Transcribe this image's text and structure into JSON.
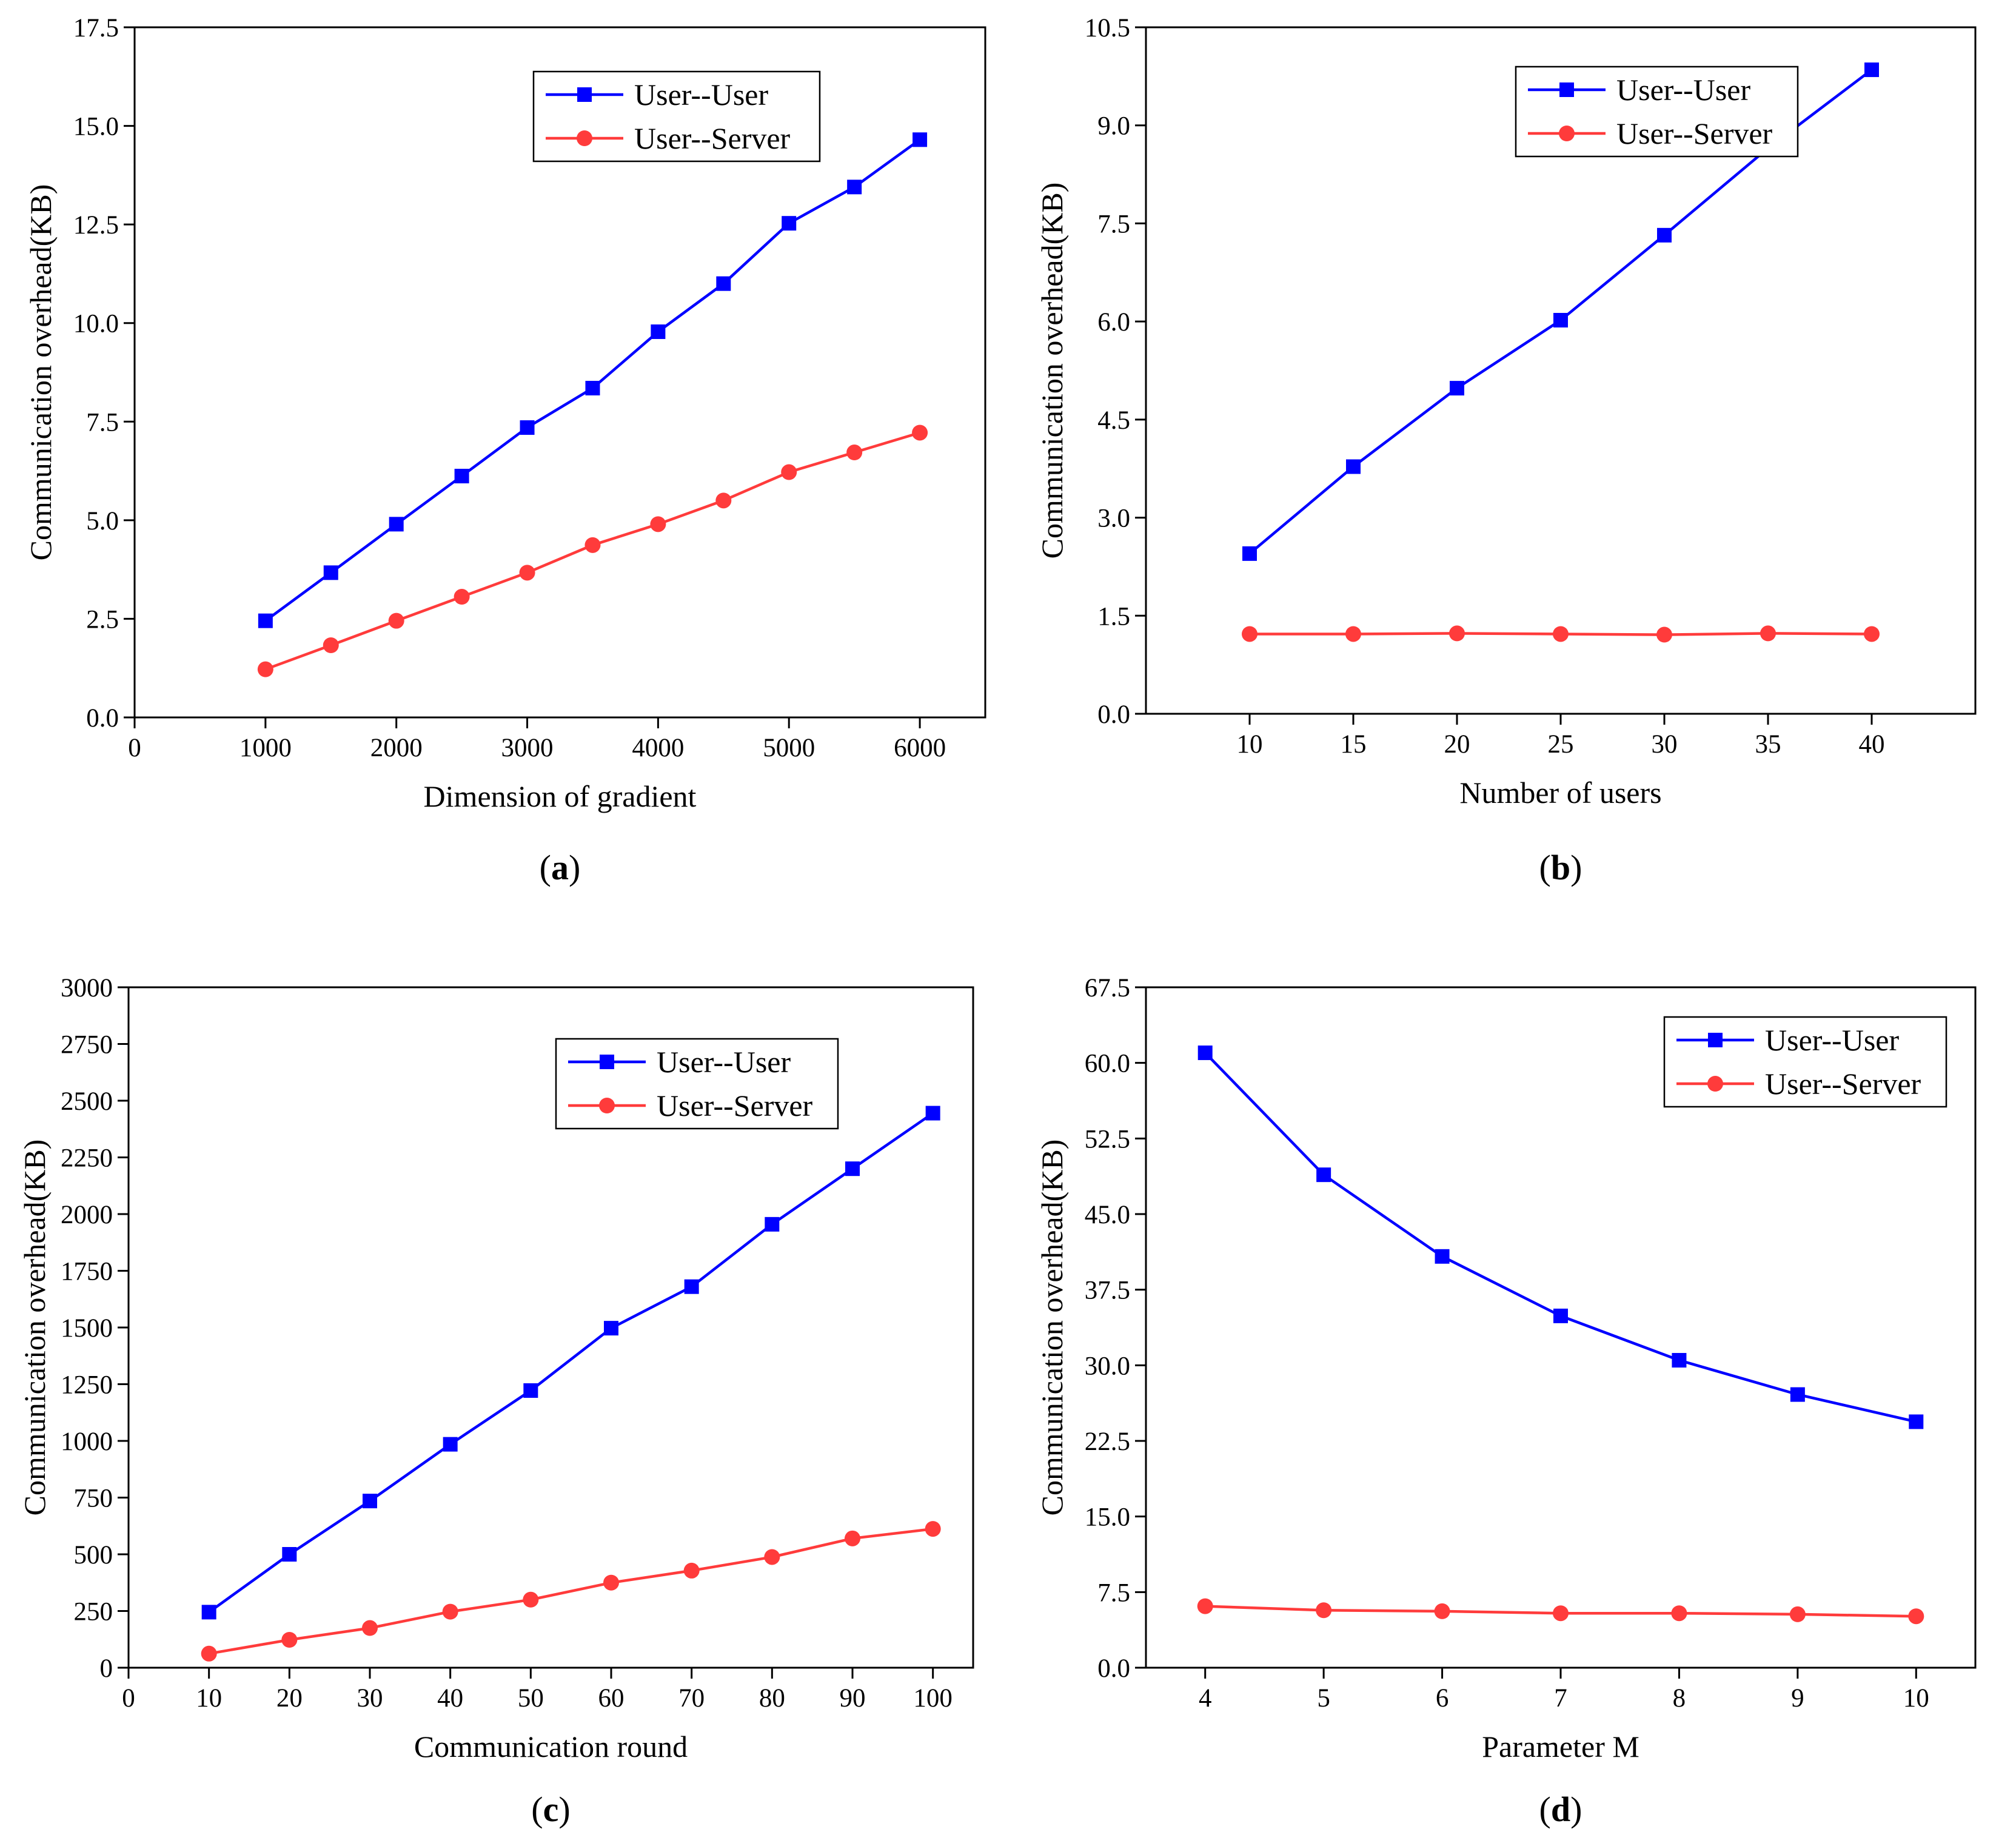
{
  "chart_data": [
    {
      "type": "line",
      "caption": "a",
      "xlabel": "Dimension of gradient",
      "ylabel": "Communication overhead(KB)",
      "xlim": [
        0,
        6500
      ],
      "ylim": [
        0,
        17.5
      ],
      "xticks": [
        "0",
        "1000",
        "2000",
        "3000",
        "4000",
        "5000",
        "6000"
      ],
      "xtick_values": [
        0,
        1000,
        2000,
        3000,
        4000,
        5000,
        6000
      ],
      "yticks": [
        "0.0",
        "2.5",
        "5.0",
        "7.5",
        "10.0",
        "12.5",
        "15.0",
        "17.5"
      ],
      "ytick_values": [
        0,
        2.5,
        5.0,
        7.5,
        10.0,
        12.5,
        15.0,
        17.5
      ],
      "legend": "top-right",
      "x": [
        1000,
        1500,
        2000,
        2500,
        3000,
        3500,
        4000,
        4500,
        5000,
        5500,
        6000
      ],
      "series": [
        {
          "name": "User--User",
          "color": "#0000ff",
          "marker": "square",
          "values": [
            2.45,
            3.67,
            4.9,
            6.12,
            7.35,
            8.35,
            9.78,
            11.0,
            12.53,
            13.45,
            14.65
          ]
        },
        {
          "name": "User--Server",
          "color": "#ff3b3b",
          "marker": "circle",
          "values": [
            1.22,
            1.83,
            2.45,
            3.06,
            3.67,
            4.37,
            4.9,
            5.5,
            6.22,
            6.72,
            7.22
          ]
        }
      ]
    },
    {
      "type": "line",
      "caption": "b",
      "xlabel": "Number of users",
      "ylabel": "Communication overhead(KB)",
      "xlim": [
        5,
        45
      ],
      "ylim": [
        0,
        10.5
      ],
      "xticks": [
        "10",
        "15",
        "20",
        "25",
        "30",
        "35",
        "40"
      ],
      "xtick_values": [
        10,
        15,
        20,
        25,
        30,
        35,
        40
      ],
      "yticks": [
        "0.0",
        "1.5",
        "3.0",
        "4.5",
        "6.0",
        "7.5",
        "9.0",
        "10.5"
      ],
      "ytick_values": [
        0,
        1.5,
        3.0,
        4.5,
        6.0,
        7.5,
        9.0,
        10.5
      ],
      "legend": "top-right",
      "x": [
        10,
        15,
        20,
        25,
        30,
        35,
        40
      ],
      "series": [
        {
          "name": "User--User",
          "color": "#0000ff",
          "marker": "square",
          "values": [
            2.45,
            3.78,
            4.98,
            6.02,
            7.32,
            8.65,
            9.85
          ]
        },
        {
          "name": "User--Server",
          "color": "#ff3b3b",
          "marker": "circle",
          "values": [
            1.22,
            1.22,
            1.23,
            1.22,
            1.21,
            1.23,
            1.22
          ]
        }
      ]
    },
    {
      "type": "line",
      "caption": "c",
      "xlabel": "Communication round",
      "ylabel": "Communication overhead(KB)",
      "xlim": [
        0,
        105
      ],
      "ylim": [
        0,
        3000
      ],
      "xticks": [
        "0",
        "10",
        "20",
        "30",
        "40",
        "50",
        "60",
        "70",
        "80",
        "90",
        "100"
      ],
      "xtick_values": [
        0,
        10,
        20,
        30,
        40,
        50,
        60,
        70,
        80,
        90,
        100
      ],
      "yticks": [
        "0",
        "250",
        "500",
        "750",
        "1000",
        "1250",
        "1500",
        "1750",
        "2000",
        "2250",
        "2500",
        "2750",
        "3000"
      ],
      "ytick_values": [
        0,
        250,
        500,
        750,
        1000,
        1250,
        1500,
        1750,
        2000,
        2250,
        2500,
        2750,
        3000
      ],
      "legend": "top-right",
      "x": [
        10,
        20,
        30,
        40,
        50,
        60,
        70,
        80,
        90,
        100
      ],
      "series": [
        {
          "name": "User--User",
          "color": "#0000ff",
          "marker": "square",
          "values": [
            245,
            500,
            735,
            985,
            1222,
            1497,
            1680,
            1955,
            2200,
            2445
          ]
        },
        {
          "name": "User--Server",
          "color": "#ff3b3b",
          "marker": "circle",
          "values": [
            62,
            123,
            175,
            247,
            300,
            375,
            428,
            488,
            570,
            612
          ]
        }
      ]
    },
    {
      "type": "line",
      "caption": "d",
      "xlabel": "Parameter M",
      "ylabel": "Communication overhead(KB)",
      "xlim": [
        3.5,
        10.5
      ],
      "ylim": [
        0,
        67.5
      ],
      "xticks": [
        "4",
        "5",
        "6",
        "7",
        "8",
        "9",
        "10"
      ],
      "xtick_values": [
        4,
        5,
        6,
        7,
        8,
        9,
        10
      ],
      "yticks": [
        "0.0",
        "7.5",
        "15.0",
        "22.5",
        "30.0",
        "37.5",
        "45.0",
        "52.5",
        "60.0",
        "67.5"
      ],
      "ytick_values": [
        0,
        7.5,
        15.0,
        22.5,
        30.0,
        37.5,
        45.0,
        52.5,
        60.0,
        67.5
      ],
      "legend": "top-right",
      "x": [
        4,
        5,
        6,
        7,
        8,
        9,
        10
      ],
      "series": [
        {
          "name": "User--User",
          "color": "#0000ff",
          "marker": "square",
          "values": [
            61.0,
            48.9,
            40.8,
            34.9,
            30.5,
            27.1,
            24.4
          ]
        },
        {
          "name": "User--Server",
          "color": "#ff3b3b",
          "marker": "circle",
          "values": [
            6.1,
            5.7,
            5.6,
            5.4,
            5.4,
            5.3,
            5.1
          ]
        }
      ]
    }
  ]
}
